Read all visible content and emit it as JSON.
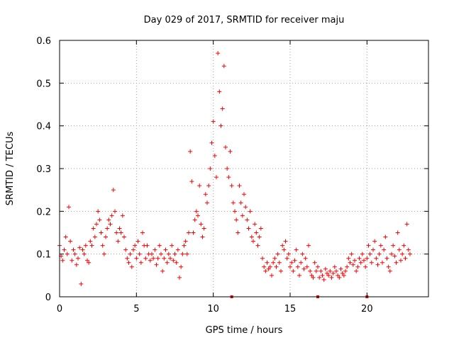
{
  "chart_data": {
    "type": "scatter",
    "title": "Day 029 of 2017, SRMTID for receiver maju",
    "xlabel": "GPS time / hours",
    "ylabel": "SRMTID / TECUs",
    "xlim": [
      0,
      24
    ],
    "ylim": [
      0,
      0.6
    ],
    "x_ticks": [
      0,
      5,
      10,
      15,
      20
    ],
    "y_ticks": [
      0,
      0.1,
      0.2,
      0.3,
      0.4,
      0.5,
      0.6
    ],
    "x_tick_labels": [
      "0",
      "5",
      "10",
      "15",
      "20"
    ],
    "y_tick_labels": [
      "0",
      "0.1",
      "0.2",
      "0.3",
      "0.4",
      "0.5",
      "0.6"
    ],
    "grid": true,
    "marker": "+",
    "color": "#ff0000",
    "series": [
      {
        "name": "SRMTID",
        "x": [
          0.0,
          0.1,
          0.2,
          0.3,
          0.4,
          0.5,
          0.6,
          0.7,
          0.8,
          0.9,
          1.0,
          1.1,
          1.2,
          1.3,
          1.4,
          1.5,
          1.6,
          1.7,
          1.8,
          1.9,
          2.0,
          2.1,
          2.2,
          2.3,
          2.4,
          2.5,
          2.6,
          2.7,
          2.8,
          2.9,
          3.0,
          3.1,
          3.2,
          3.3,
          3.4,
          3.5,
          3.6,
          3.7,
          3.8,
          3.9,
          4.0,
          4.1,
          4.2,
          4.3,
          4.4,
          4.5,
          4.6,
          4.7,
          4.8,
          4.9,
          5.0,
          5.1,
          5.2,
          5.3,
          5.4,
          5.5,
          5.6,
          5.7,
          5.8,
          5.9,
          6.0,
          6.1,
          6.2,
          6.3,
          6.4,
          6.5,
          6.6,
          6.7,
          6.8,
          6.9,
          7.0,
          7.1,
          7.2,
          7.3,
          7.4,
          7.5,
          7.6,
          7.7,
          7.8,
          7.9,
          8.0,
          8.1,
          8.2,
          8.3,
          8.4,
          8.5,
          8.6,
          8.7,
          8.8,
          8.9,
          9.0,
          9.1,
          9.2,
          9.3,
          9.4,
          9.5,
          9.6,
          9.7,
          9.8,
          9.9,
          10.0,
          10.1,
          10.2,
          10.3,
          10.4,
          10.5,
          10.6,
          10.7,
          10.8,
          10.9,
          11.0,
          11.1,
          11.2,
          11.3,
          11.4,
          11.5,
          11.6,
          11.7,
          11.8,
          11.9,
          12.0,
          12.1,
          12.2,
          12.3,
          12.4,
          12.5,
          12.6,
          12.7,
          12.8,
          12.9,
          13.0,
          13.1,
          13.2,
          13.3,
          13.4,
          13.5,
          13.6,
          13.7,
          13.8,
          13.9,
          14.0,
          14.1,
          14.2,
          14.3,
          14.4,
          14.5,
          14.6,
          14.7,
          14.8,
          14.9,
          15.0,
          15.1,
          15.2,
          15.3,
          15.4,
          15.5,
          15.6,
          15.7,
          15.8,
          15.9,
          16.0,
          16.1,
          16.2,
          16.3,
          16.4,
          16.5,
          16.6,
          16.7,
          16.8,
          16.9,
          17.0,
          17.1,
          17.2,
          17.3,
          17.4,
          17.5,
          17.6,
          17.7,
          17.8,
          17.9,
          18.0,
          18.1,
          18.2,
          18.3,
          18.4,
          18.5,
          18.6,
          18.7,
          18.8,
          18.9,
          19.0,
          19.1,
          19.2,
          19.3,
          19.4,
          19.5,
          19.6,
          19.7,
          19.8,
          19.9,
          20.0,
          20.1,
          20.2,
          20.3,
          20.4,
          20.5,
          20.6,
          20.7,
          20.8,
          20.9,
          21.0,
          21.1,
          21.2,
          21.3,
          21.4,
          21.5,
          21.6,
          21.7,
          21.8,
          21.9,
          22.0,
          22.1,
          22.2,
          22.3,
          22.4,
          22.5,
          22.6,
          22.7,
          22.8
        ],
        "values": [
          0.12,
          0.095,
          0.085,
          0.11,
          0.14,
          0.1,
          0.21,
          0.13,
          0.085,
          0.11,
          0.1,
          0.075,
          0.09,
          0.115,
          0.03,
          0.11,
          0.1,
          0.12,
          0.085,
          0.08,
          0.13,
          0.12,
          0.16,
          0.14,
          0.17,
          0.2,
          0.18,
          0.15,
          0.12,
          0.1,
          0.14,
          0.16,
          0.18,
          0.17,
          0.19,
          0.25,
          0.2,
          0.15,
          0.13,
          0.16,
          0.15,
          0.19,
          0.14,
          0.11,
          0.09,
          0.08,
          0.1,
          0.07,
          0.11,
          0.12,
          0.09,
          0.13,
          0.1,
          0.08,
          0.15,
          0.12,
          0.09,
          0.12,
          0.1,
          0.085,
          0.1,
          0.09,
          0.11,
          0.075,
          0.09,
          0.12,
          0.1,
          0.06,
          0.09,
          0.11,
          0.08,
          0.1,
          0.09,
          0.12,
          0.085,
          0.1,
          0.08,
          0.11,
          0.045,
          0.07,
          0.1,
          0.12,
          0.13,
          0.1,
          0.15,
          0.34,
          0.27,
          0.15,
          0.18,
          0.2,
          0.19,
          0.26,
          0.17,
          0.14,
          0.16,
          0.24,
          0.22,
          0.26,
          0.3,
          0.36,
          0.41,
          0.33,
          0.28,
          0.57,
          0.48,
          0.4,
          0.44,
          0.54,
          0.35,
          0.3,
          0.28,
          0.34,
          0.26,
          0.22,
          0.2,
          0.18,
          0.15,
          0.26,
          0.22,
          0.19,
          0.24,
          0.21,
          0.18,
          0.16,
          0.2,
          0.14,
          0.13,
          0.17,
          0.15,
          0.12,
          0.14,
          0.16,
          0.09,
          0.07,
          0.06,
          0.08,
          0.065,
          0.07,
          0.05,
          0.08,
          0.09,
          0.07,
          0.1,
          0.08,
          0.06,
          0.12,
          0.11,
          0.13,
          0.09,
          0.1,
          0.07,
          0.08,
          0.06,
          0.085,
          0.11,
          0.07,
          0.05,
          0.08,
          0.1,
          0.065,
          0.09,
          0.07,
          0.12,
          0.06,
          0.05,
          0.045,
          0.08,
          0.06,
          0.07,
          0.045,
          0.06,
          0.05,
          0.04,
          0.065,
          0.055,
          0.05,
          0.06,
          0.045,
          0.055,
          0.07,
          0.06,
          0.05,
          0.045,
          0.065,
          0.055,
          0.05,
          0.06,
          0.07,
          0.09,
          0.08,
          0.1,
          0.075,
          0.085,
          0.06,
          0.07,
          0.09,
          0.08,
          0.1,
          0.085,
          0.07,
          0.09,
          0.12,
          0.1,
          0.08,
          0.11,
          0.13,
          0.09,
          0.075,
          0.1,
          0.12,
          0.08,
          0.11,
          0.14,
          0.09,
          0.07,
          0.06,
          0.1,
          0.12,
          0.095,
          0.08,
          0.15,
          0.11,
          0.085,
          0.1,
          0.12,
          0.09,
          0.17,
          0.11,
          0.1
        ]
      }
    ],
    "baseline_marks_x": [
      11.2,
      16.8,
      20.0
    ]
  }
}
